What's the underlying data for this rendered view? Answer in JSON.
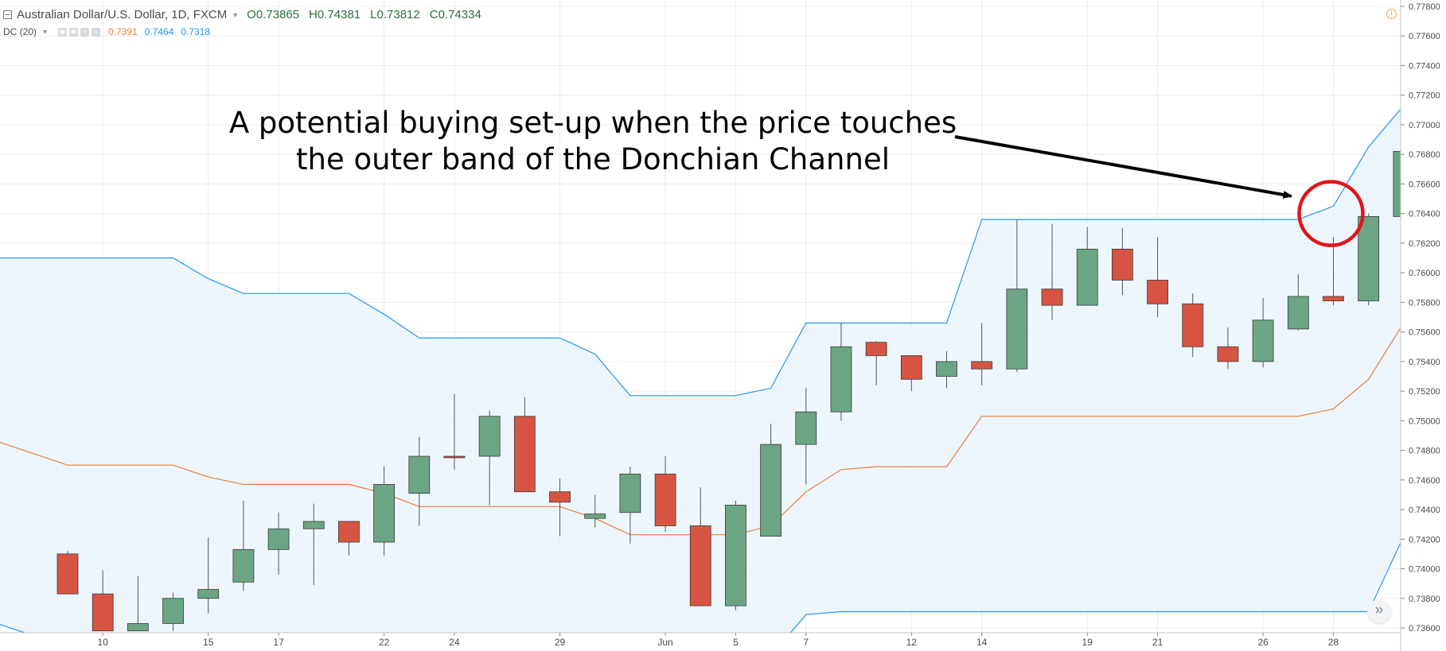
{
  "header": {
    "symbol_title": "Australian Dollar/U.S. Dollar, 1D, FXCM",
    "open_label": "O",
    "open_value": "0.73865",
    "high_label": "H",
    "high_value": "0.74381",
    "low_label": "L",
    "low_value": "0.73812",
    "close_label": "C",
    "close_value": "0.74334"
  },
  "indicator": {
    "name": "DC (20)",
    "value_mid": "0.7391",
    "value_upper": "0.7464",
    "value_lower": "0.7318"
  },
  "annotation": {
    "line1": "A potential buying set-up when the price touches",
    "line2": "the outer band of the Donchian Channel"
  },
  "icons": {
    "collapse": "collapse-square-icon",
    "dropdown": "chevron-down-icon",
    "eye": "eye-icon",
    "settings": "gear-icon",
    "add": "plus-icon",
    "close": "close-icon",
    "alert": "alert-circle-icon",
    "scroll": "double-chevron-right-icon"
  },
  "colors": {
    "up_candle": "#6ba583",
    "down_candle": "#d75442",
    "candle_border": "#225437",
    "upper_band": "#2196f3",
    "lower_band": "#2196f3",
    "mid_band": "#ef7d32",
    "channel_fill": "#eaf4fc",
    "highlight_circle": "#e0151a"
  },
  "chart_data": {
    "type": "candlestick",
    "ylim": [
      0.7354,
      0.7782
    ],
    "y_ticks": [
      "0.73600",
      "0.73800",
      "0.74000",
      "0.74200",
      "0.74400",
      "0.74600",
      "0.74800",
      "0.75000",
      "0.75200",
      "0.75400",
      "0.75600",
      "0.75800",
      "0.76000",
      "0.76200",
      "0.76400",
      "0.76600",
      "0.76800",
      "0.77000",
      "0.77200",
      "0.77400",
      "0.77600",
      "0.77800"
    ],
    "x_ticks": [
      {
        "index": 1,
        "label": "10"
      },
      {
        "index": 4,
        "label": "15"
      },
      {
        "index": 6,
        "label": "17"
      },
      {
        "index": 9,
        "label": "22"
      },
      {
        "index": 11,
        "label": "24"
      },
      {
        "index": 14,
        "label": "29"
      },
      {
        "index": 17,
        "label": "Jun"
      },
      {
        "index": 19,
        "label": "5"
      },
      {
        "index": 21,
        "label": "7"
      },
      {
        "index": 24,
        "label": "12"
      },
      {
        "index": 26,
        "label": "14"
      },
      {
        "index": 29,
        "label": "19"
      },
      {
        "index": 31,
        "label": "21"
      },
      {
        "index": 34,
        "label": "26"
      },
      {
        "index": 36,
        "label": "28"
      }
    ],
    "candles": [
      {
        "o": 0.741,
        "h": 0.7412,
        "l": 0.7383,
        "c": 0.7383
      },
      {
        "o": 0.7383,
        "h": 0.7399,
        "l": 0.7358,
        "c": 0.7358
      },
      {
        "o": 0.7358,
        "h": 0.7395,
        "l": 0.7358,
        "c": 0.7363
      },
      {
        "o": 0.7363,
        "h": 0.7384,
        "l": 0.7358,
        "c": 0.738
      },
      {
        "o": 0.738,
        "h": 0.7421,
        "l": 0.737,
        "c": 0.7386
      },
      {
        "o": 0.7391,
        "h": 0.7446,
        "l": 0.7385,
        "c": 0.7413
      },
      {
        "o": 0.7413,
        "h": 0.7438,
        "l": 0.7396,
        "c": 0.7427
      },
      {
        "o": 0.7427,
        "h": 0.7444,
        "l": 0.7389,
        "c": 0.7432
      },
      {
        "o": 0.7432,
        "h": 0.7432,
        "l": 0.7409,
        "c": 0.7418
      },
      {
        "o": 0.7418,
        "h": 0.7469,
        "l": 0.7409,
        "c": 0.7457
      },
      {
        "o": 0.7451,
        "h": 0.7489,
        "l": 0.7429,
        "c": 0.7476
      },
      {
        "o": 0.7476,
        "h": 0.7518,
        "l": 0.7467,
        "c": 0.7475
      },
      {
        "o": 0.7476,
        "h": 0.7507,
        "l": 0.7443,
        "c": 0.7503
      },
      {
        "o": 0.7503,
        "h": 0.7516,
        "l": 0.7452,
        "c": 0.7452
      },
      {
        "o": 0.7452,
        "h": 0.7461,
        "l": 0.7422,
        "c": 0.7445
      },
      {
        "o": 0.7434,
        "h": 0.745,
        "l": 0.7428,
        "c": 0.7437
      },
      {
        "o": 0.7438,
        "h": 0.7469,
        "l": 0.7417,
        "c": 0.7464
      },
      {
        "o": 0.7464,
        "h": 0.7476,
        "l": 0.7425,
        "c": 0.7429
      },
      {
        "o": 0.7429,
        "h": 0.7455,
        "l": 0.7375,
        "c": 0.7375
      },
      {
        "o": 0.7375,
        "h": 0.7446,
        "l": 0.7372,
        "c": 0.7443
      },
      {
        "o": 0.7422,
        "h": 0.7498,
        "l": 0.7422,
        "c": 0.7484
      },
      {
        "o": 0.7484,
        "h": 0.7522,
        "l": 0.7457,
        "c": 0.7506
      },
      {
        "o": 0.7506,
        "h": 0.7566,
        "l": 0.75,
        "c": 0.755
      },
      {
        "o": 0.7553,
        "h": 0.7554,
        "l": 0.7524,
        "c": 0.7544
      },
      {
        "o": 0.7544,
        "h": 0.7544,
        "l": 0.752,
        "c": 0.7528
      },
      {
        "o": 0.753,
        "h": 0.7547,
        "l": 0.7522,
        "c": 0.754
      },
      {
        "o": 0.754,
        "h": 0.7566,
        "l": 0.7524,
        "c": 0.7535
      },
      {
        "o": 0.7535,
        "h": 0.7636,
        "l": 0.7533,
        "c": 0.7589
      },
      {
        "o": 0.7589,
        "h": 0.7633,
        "l": 0.7568,
        "c": 0.7578
      },
      {
        "o": 0.7578,
        "h": 0.7631,
        "l": 0.7578,
        "c": 0.7616
      },
      {
        "o": 0.7616,
        "h": 0.763,
        "l": 0.7585,
        "c": 0.7595
      },
      {
        "o": 0.7595,
        "h": 0.7624,
        "l": 0.757,
        "c": 0.7579
      },
      {
        "o": 0.7579,
        "h": 0.7586,
        "l": 0.7543,
        "c": 0.755
      },
      {
        "o": 0.755,
        "h": 0.7563,
        "l": 0.7535,
        "c": 0.754
      },
      {
        "o": 0.754,
        "h": 0.7583,
        "l": 0.7536,
        "c": 0.7568
      },
      {
        "o": 0.7562,
        "h": 0.7599,
        "l": 0.7561,
        "c": 0.7584
      },
      {
        "o": 0.7584,
        "h": 0.7624,
        "l": 0.7578,
        "c": 0.7581
      },
      {
        "o": 0.7581,
        "h": 0.764,
        "l": 0.7578,
        "c": 0.7638
      },
      {
        "o": 0.7638,
        "h": 0.7686,
        "l": 0.7638,
        "c": 0.7682
      },
      {
        "o": 0.7682,
        "h": 0.7682,
        "l": 0.7667,
        "c": 0.7682
      }
    ],
    "series": [
      {
        "name": "Upper",
        "values": [
          [
            -2,
            0.761
          ],
          [
            0,
            0.761
          ],
          [
            3,
            0.761
          ],
          [
            4,
            0.7596
          ],
          [
            5,
            0.7586
          ],
          [
            8,
            0.7586
          ],
          [
            9,
            0.7572
          ],
          [
            10,
            0.7556
          ],
          [
            14,
            0.7556
          ],
          [
            15,
            0.7545
          ],
          [
            16,
            0.7517
          ],
          [
            19,
            0.7517
          ],
          [
            20,
            0.7522
          ],
          [
            21,
            0.7566
          ],
          [
            25,
            0.7566
          ],
          [
            26,
            0.7636
          ],
          [
            35,
            0.7636
          ],
          [
            36,
            0.7645
          ],
          [
            37,
            0.7685
          ],
          [
            38,
            0.7713
          ]
        ]
      },
      {
        "name": "Middle",
        "values": [
          [
            -2,
            0.7486
          ],
          [
            0,
            0.747
          ],
          [
            3,
            0.747
          ],
          [
            4,
            0.7462
          ],
          [
            5,
            0.7457
          ],
          [
            8,
            0.7457
          ],
          [
            9,
            0.7451
          ],
          [
            10,
            0.7442
          ],
          [
            14,
            0.7442
          ],
          [
            15,
            0.7434
          ],
          [
            16,
            0.7423
          ],
          [
            19,
            0.7423
          ],
          [
            20,
            0.7429
          ],
          [
            21,
            0.7452
          ],
          [
            22,
            0.7467
          ],
          [
            23,
            0.7469
          ],
          [
            25,
            0.7469
          ],
          [
            26,
            0.7503
          ],
          [
            35,
            0.7503
          ],
          [
            36,
            0.7508
          ],
          [
            37,
            0.7528
          ],
          [
            38,
            0.7566
          ]
        ]
      },
      {
        "name": "Lower",
        "values": [
          [
            -2,
            0.7363
          ],
          [
            -1,
            0.7355
          ],
          [
            20.5,
            0.7355
          ],
          [
            21,
            0.7369
          ],
          [
            22,
            0.7371
          ],
          [
            36,
            0.7371
          ],
          [
            37,
            0.7371
          ],
          [
            38,
            0.7422
          ]
        ]
      }
    ],
    "highlight": {
      "index": 36,
      "value": 0.764
    }
  }
}
